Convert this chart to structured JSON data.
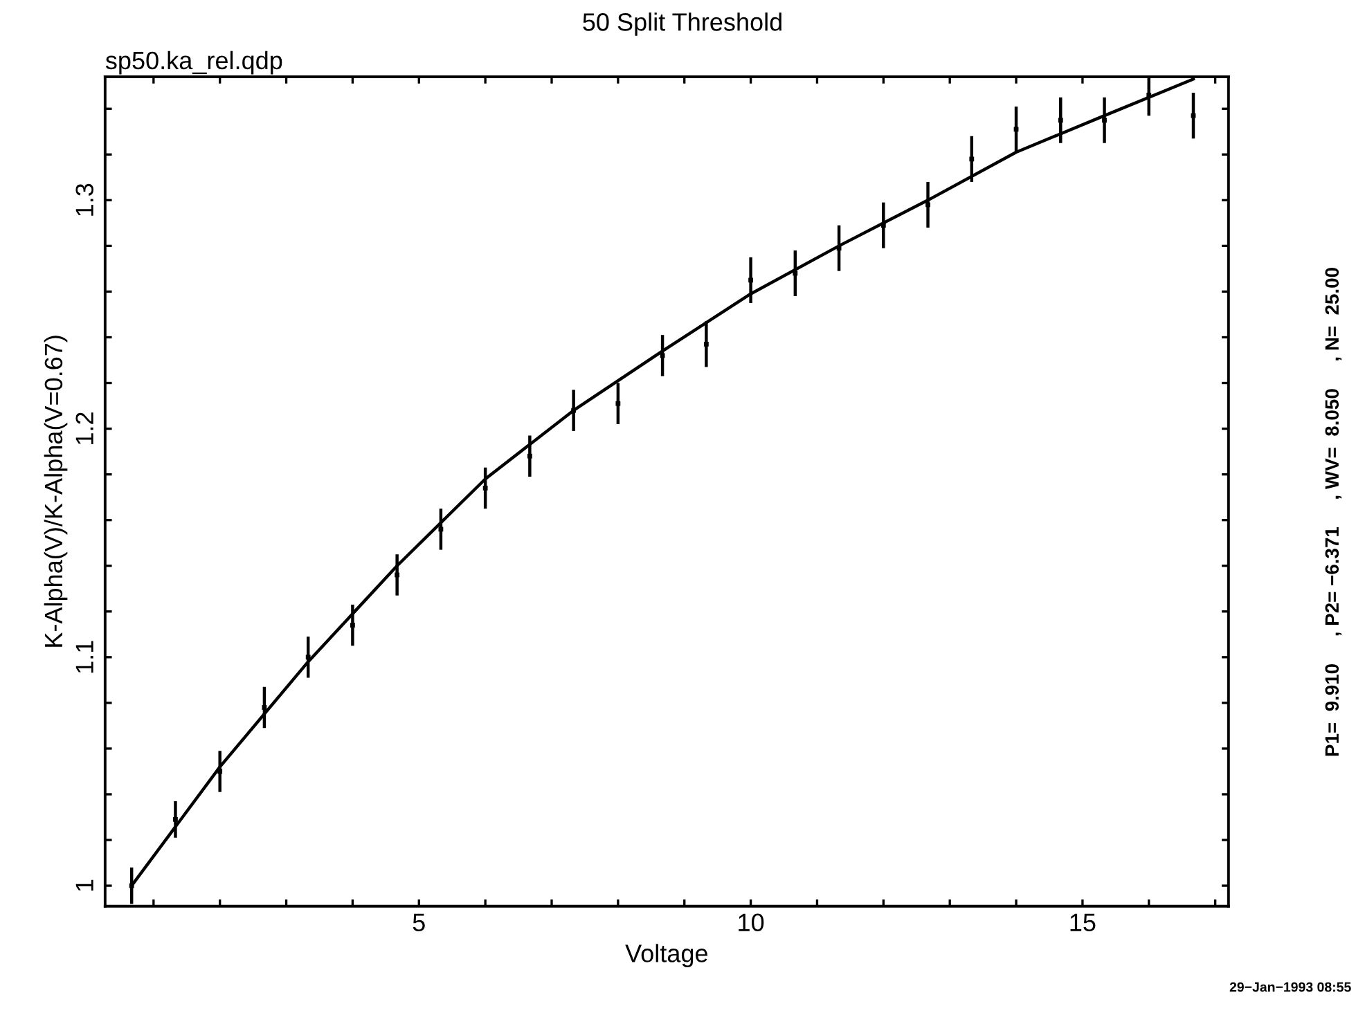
{
  "chart_data": {
    "type": "scatter",
    "title": "50 Split Threshold",
    "subtitle": "sp50.ka_rel.qdp",
    "xlabel": "Voltage",
    "ylabel": "K-Alpha(V)/K-Alpha(V=0.67)",
    "annotations": [
      "P1=  9.910     , P2= −6.371     , WV=  8.050     , N=  25.00",
      "29−Jan−1993 08:55"
    ],
    "series": [
      {
        "type": "scatter",
        "x": [
          0.67,
          1.33,
          2,
          2.67,
          3.33,
          4,
          4.67,
          5.33,
          6,
          6.67,
          7.33,
          8,
          8.67,
          9.33,
          10,
          10.67,
          11.33,
          12,
          12.67,
          13.33,
          14,
          14.67,
          15.33,
          16,
          16.67
        ],
        "color": "#000000",
        "values": [
          1.0,
          1.029,
          1.05,
          1.078,
          1.1,
          1.114,
          1.136,
          1.156,
          1.174,
          1.188,
          1.208,
          1.211,
          1.232,
          1.237,
          1.265,
          1.268,
          1.279,
          1.289,
          1.298,
          1.318,
          1.331,
          1.335,
          1.335,
          1.346,
          1.337
        ],
        "errors": [
          0.008,
          0.008,
          0.009,
          0.009,
          0.009,
          0.009,
          0.009,
          0.009,
          0.009,
          0.009,
          0.009,
          0.009,
          0.009,
          0.01,
          0.01,
          0.01,
          0.01,
          0.01,
          0.01,
          0.01,
          0.01,
          0.01,
          0.01,
          0.009,
          0.01
        ]
      },
      {
        "type": "line",
        "color": "#000000",
        "x": [
          0.67,
          2,
          3.33,
          4.67,
          6,
          7.33,
          8.67,
          10,
          11.33,
          12.67,
          14,
          15.33,
          16.67
        ],
        "values": [
          1.0,
          1.052,
          1.098,
          1.14,
          1.178,
          1.208,
          1.234,
          1.259,
          1.28,
          1.3,
          1.321,
          1.337,
          1.353
        ]
      }
    ],
    "xlim": [
      0.27,
      17.2
    ],
    "ylim": [
      0.991,
      1.354
    ],
    "xticks": [
      {
        "value": 1,
        "label": null
      },
      {
        "value": 2,
        "label": null
      },
      {
        "value": 3,
        "label": null
      },
      {
        "value": 4,
        "label": null
      },
      5,
      {
        "value": 6,
        "label": null
      },
      {
        "value": 7,
        "label": null
      },
      {
        "value": 8,
        "label": null
      },
      {
        "value": 9,
        "label": null
      },
      10,
      {
        "value": 11,
        "label": null
      },
      {
        "value": 12,
        "label": null
      },
      {
        "value": 13,
        "label": null
      },
      {
        "value": 14,
        "label": null
      },
      15,
      {
        "value": 16,
        "label": null
      },
      {
        "value": 17,
        "label": null
      }
    ],
    "yticks": [
      1,
      {
        "value": 1.02,
        "label": null
      },
      {
        "value": 1.04,
        "label": null
      },
      {
        "value": 1.06,
        "label": null
      },
      {
        "value": 1.08,
        "label": null
      },
      1.1,
      {
        "value": 1.12,
        "label": null
      },
      {
        "value": 1.14,
        "label": null
      },
      {
        "value": 1.16,
        "label": null
      },
      {
        "value": 1.18,
        "label": null
      },
      1.2,
      {
        "value": 1.22,
        "label": null
      },
      {
        "value": 1.24,
        "label": null
      },
      {
        "value": 1.26,
        "label": null
      },
      {
        "value": 1.28,
        "label": null
      },
      1.3,
      {
        "value": 1.32,
        "label": null
      },
      {
        "value": 1.34,
        "label": null
      }
    ],
    "grid": false,
    "legend": false
  }
}
